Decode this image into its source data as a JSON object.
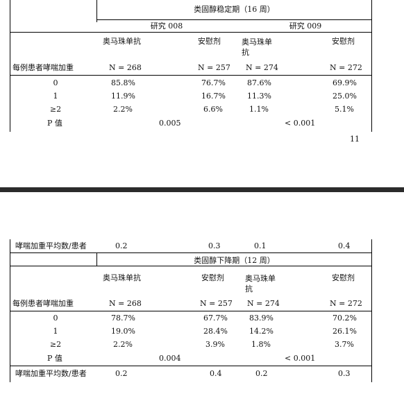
{
  "top": {
    "period_header": "类固醇稳定期（16 周）",
    "study_a": "研究 008",
    "study_b": "研究 009",
    "col_labels": [
      "奥马珠单抗",
      "安慰剂",
      "奥马珠单\n抗",
      "安慰剂"
    ],
    "row_header_label": "每例患者哮喘加重",
    "n_values": [
      "N = 268",
      "N = 257",
      "N = 274",
      "N = 272"
    ],
    "rows": [
      {
        "label": "0",
        "values": [
          "85.8%",
          "76.7%",
          "87.6%",
          "69.9%"
        ]
      },
      {
        "label": "1",
        "values": [
          "11.9%",
          "16.7%",
          "11.3%",
          "25.0%"
        ]
      },
      {
        "label": "≥2",
        "values": [
          "2.2%",
          "6.6%",
          "1.1%",
          "5.1%"
        ]
      }
    ],
    "p_label": "P 值",
    "p_values": [
      "0.005",
      "< 0.001"
    ],
    "page_number": "11"
  },
  "bottom": {
    "mean_label": "哮喘加重平均数/患者",
    "mean_values_stable": [
      "0.2",
      "0.3",
      "0.1",
      "0.4"
    ],
    "period_header": "类固醇下降期（12 周）",
    "col_labels": [
      "奥马珠单抗",
      "安慰剂",
      "奥马珠单\n抗",
      "安慰剂"
    ],
    "row_header_label": "每例患者哮喘加重",
    "n_values": [
      "N = 268",
      "N = 257",
      "N = 274",
      "N = 272"
    ],
    "rows": [
      {
        "label": "0",
        "values": [
          "78.7%",
          "67.7%",
          "83.9%",
          "70.2%"
        ]
      },
      {
        "label": "1",
        "values": [
          "19.0%",
          "28.4%",
          "14.2%",
          "26.1%"
        ]
      },
      {
        "label": "≥2",
        "values": [
          "2.2%",
          "3.9%",
          "1.8%",
          "3.7%"
        ]
      }
    ],
    "p_label": "P 值",
    "p_values": [
      "0.004",
      "< 0.001"
    ],
    "mean_values_taper": [
      "0.2",
      "0.4",
      "0.2",
      "0.3"
    ]
  }
}
